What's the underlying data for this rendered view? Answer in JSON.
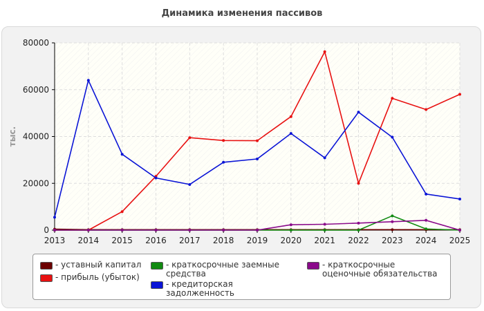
{
  "chart_data": {
    "type": "line",
    "title": "Динамика изменения пассивов",
    "xlabel": "",
    "ylabel": "тыс.",
    "ylim": [
      0,
      80000
    ],
    "yticks": [
      0,
      20000,
      40000,
      60000,
      80000
    ],
    "grid": true,
    "legend_position": "bottom",
    "categories": [
      "2013",
      "2014",
      "2015",
      "2016",
      "2017",
      "2018",
      "2019",
      "2020",
      "2021",
      "2022",
      "2023",
      "2024",
      "2025"
    ],
    "series": [
      {
        "name": "- уставный капитал",
        "color": "#6b0000",
        "values": [
          400,
          200,
          200,
          200,
          200,
          200,
          200,
          200,
          200,
          200,
          200,
          200,
          200
        ]
      },
      {
        "name": "- прибыль (убыток)",
        "color": "#e81111",
        "values": [
          0,
          0,
          7900,
          23000,
          39500,
          38300,
          38200,
          48500,
          76200,
          20000,
          56300,
          51500,
          58000
        ]
      },
      {
        "name": "- краткосрочные заемные средства",
        "color": "#118a11",
        "values": [
          0,
          0,
          0,
          0,
          0,
          0,
          0,
          0,
          0,
          0,
          6100,
          500,
          0
        ]
      },
      {
        "name": "- кредиторская задолженность",
        "color": "#0a14d6",
        "values": [
          5500,
          64000,
          32400,
          22300,
          19500,
          29000,
          30400,
          41300,
          30900,
          50400,
          39700,
          15400,
          13300
        ]
      },
      {
        "name": "- краткосрочные оценочные обязательства",
        "color": "#8a0a8a",
        "values": [
          0,
          0,
          0,
          0,
          0,
          0,
          0,
          2300,
          2500,
          3000,
          3600,
          4200,
          0
        ]
      }
    ]
  }
}
